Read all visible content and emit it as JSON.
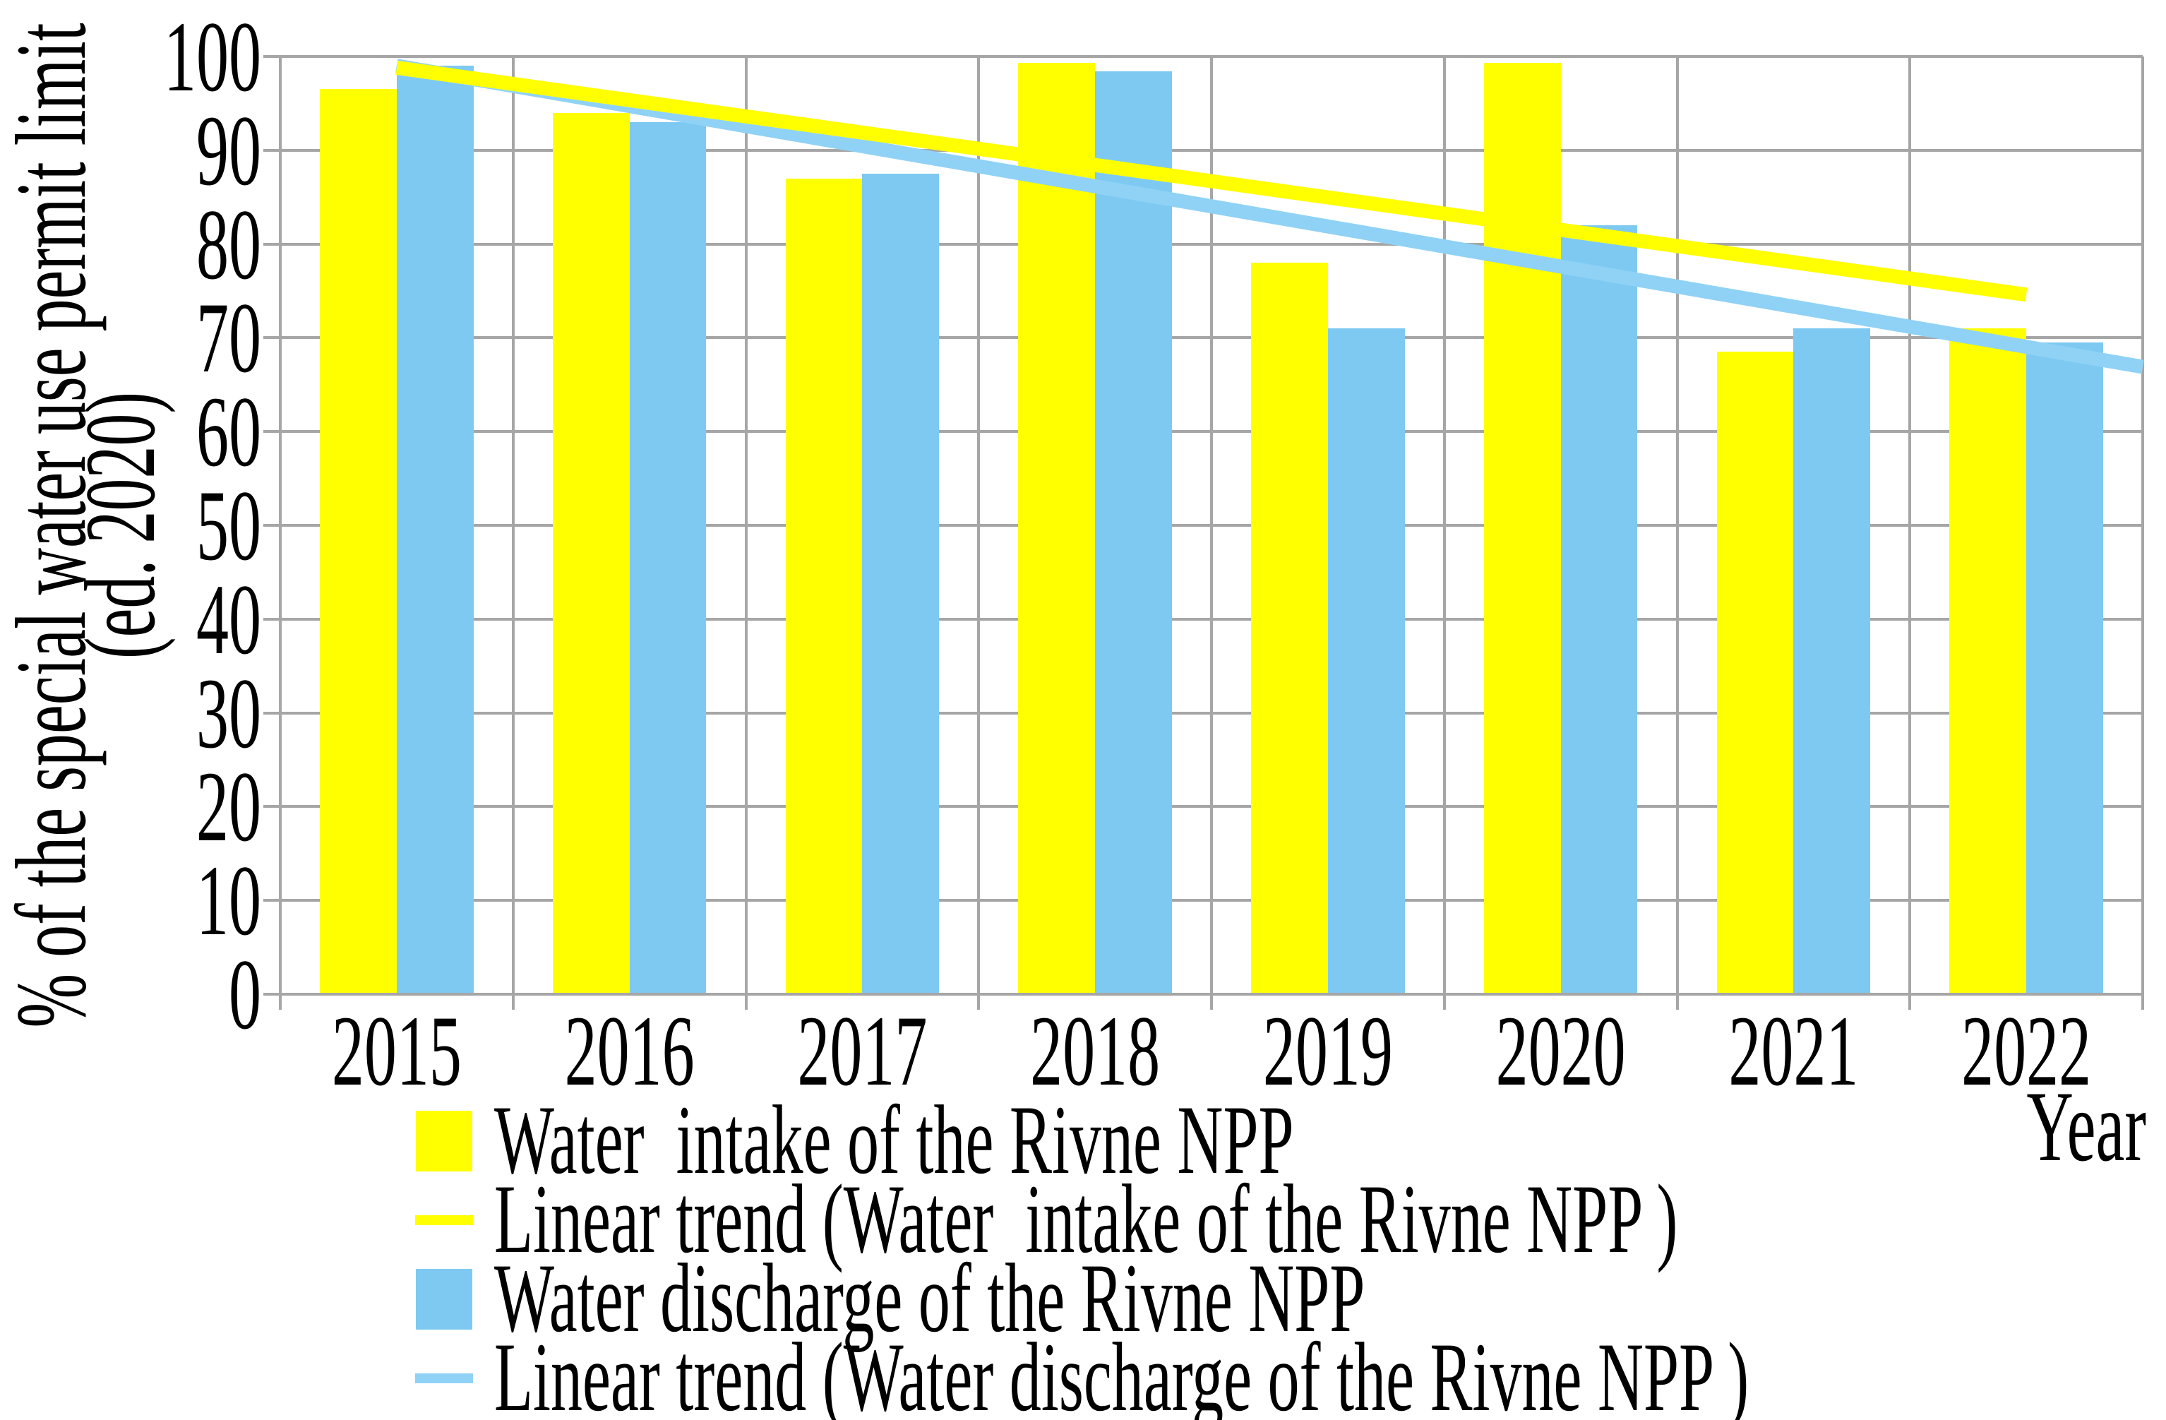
{
  "chart_data": {
    "type": "bar",
    "title": "",
    "xlabel": "Year",
    "ylabel_line1": "% of the special water use permit limit",
    "ylabel_line2": "(ed. 2020)",
    "categories": [
      "2015",
      "2016",
      "2017",
      "2018",
      "2019",
      "2020",
      "2021",
      "2022"
    ],
    "series": [
      {
        "name": "Water  intake of the Rivne NPP",
        "color": "#FFFF00",
        "values": [
          96.5,
          94,
          87,
          99.3,
          78,
          99.3,
          68.5,
          71
        ]
      },
      {
        "name": "Water discharge of the Rivne NPP",
        "color": "#7EC9F2",
        "values": [
          99,
          93,
          87.5,
          98.4,
          71,
          82,
          71,
          69.5
        ]
      }
    ],
    "trendlines": [
      {
        "name": "Linear trend (Water  intake of the Rivne NPP )",
        "color": "#FFFF00",
        "start_value": 98.8,
        "end_value": 74.6,
        "extend_to_plot_edge": false,
        "edge_value": null
      },
      {
        "name": "Linear trend (Water discharge of the Rivne NPP )",
        "color": "#8FD2F6",
        "start_value": 99.0,
        "end_value": 68.9,
        "extend_to_plot_edge": true,
        "edge_value": 66.9
      }
    ],
    "ylim": [
      0,
      100
    ],
    "yticks": [
      0,
      10,
      20,
      30,
      40,
      50,
      60,
      70,
      80,
      90,
      100
    ],
    "grid": true,
    "legend_position": "bottom-left",
    "colors": {
      "grid": "#A6A6A6",
      "axis": "#A6A6A6",
      "background": "#FFFFFF",
      "text": "#000000"
    }
  },
  "legend": {
    "items": [
      {
        "label": "Water  intake of the Rivne NPP",
        "marker": "square",
        "color": "#FFFF00"
      },
      {
        "label": "Linear trend (Water  intake of the Rivne NPP )",
        "marker": "line",
        "color": "#FFFF00"
      },
      {
        "label": "Water discharge of the Rivne NPP",
        "marker": "square",
        "color": "#7EC9F2"
      },
      {
        "label": "Linear trend (Water discharge of the Rivne NPP )",
        "marker": "line",
        "color": "#8FD2F6"
      }
    ]
  }
}
